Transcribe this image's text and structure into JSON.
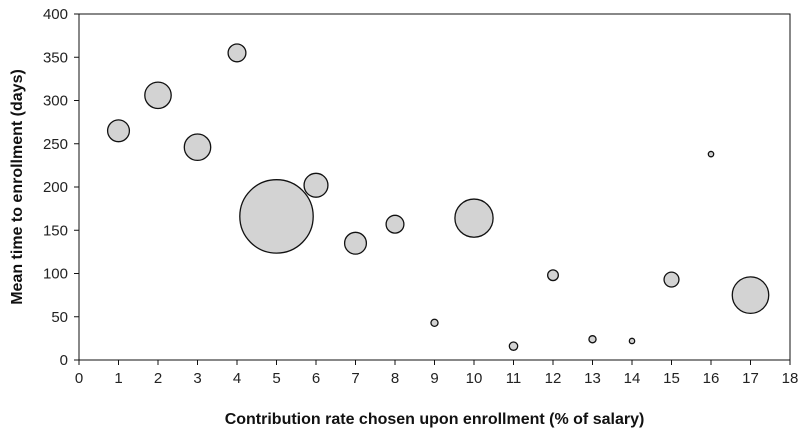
{
  "chart_data": {
    "type": "scatter",
    "variant": "bubble",
    "title": "",
    "xlabel": "Contribution rate chosen upon enrollment (% of salary)",
    "ylabel": "Mean time to enrollment (days)",
    "xlim": [
      0,
      18
    ],
    "ylim": [
      0,
      400
    ],
    "xticks": [
      0,
      1,
      2,
      3,
      4,
      5,
      6,
      7,
      8,
      9,
      10,
      11,
      12,
      13,
      14,
      15,
      16,
      17,
      18
    ],
    "yticks": [
      0,
      50,
      100,
      150,
      200,
      250,
      300,
      350,
      400
    ],
    "grid": false,
    "legend": "none",
    "bubble_fill": "#d3d3d3",
    "bubble_stroke": "#111111",
    "points": [
      {
        "x": 1,
        "y": 265,
        "size": 1.5
      },
      {
        "x": 2,
        "y": 306,
        "size": 2.2
      },
      {
        "x": 3,
        "y": 246,
        "size": 2.2
      },
      {
        "x": 4,
        "y": 355,
        "size": 1.0
      },
      {
        "x": 5,
        "y": 166,
        "size": 17.0
      },
      {
        "x": 6,
        "y": 202,
        "size": 1.8
      },
      {
        "x": 7,
        "y": 135,
        "size": 1.5
      },
      {
        "x": 8,
        "y": 157,
        "size": 1.0
      },
      {
        "x": 9,
        "y": 43,
        "size": 0.16
      },
      {
        "x": 10,
        "y": 164,
        "size": 4.6
      },
      {
        "x": 11,
        "y": 16,
        "size": 0.22
      },
      {
        "x": 12,
        "y": 98,
        "size": 0.36
      },
      {
        "x": 13,
        "y": 24,
        "size": 0.16
      },
      {
        "x": 14,
        "y": 22,
        "size": 0.09
      },
      {
        "x": 15,
        "y": 93,
        "size": 0.7
      },
      {
        "x": 16,
        "y": 238,
        "size": 0.09
      },
      {
        "x": 17,
        "y": 75,
        "size": 4.2
      }
    ]
  }
}
